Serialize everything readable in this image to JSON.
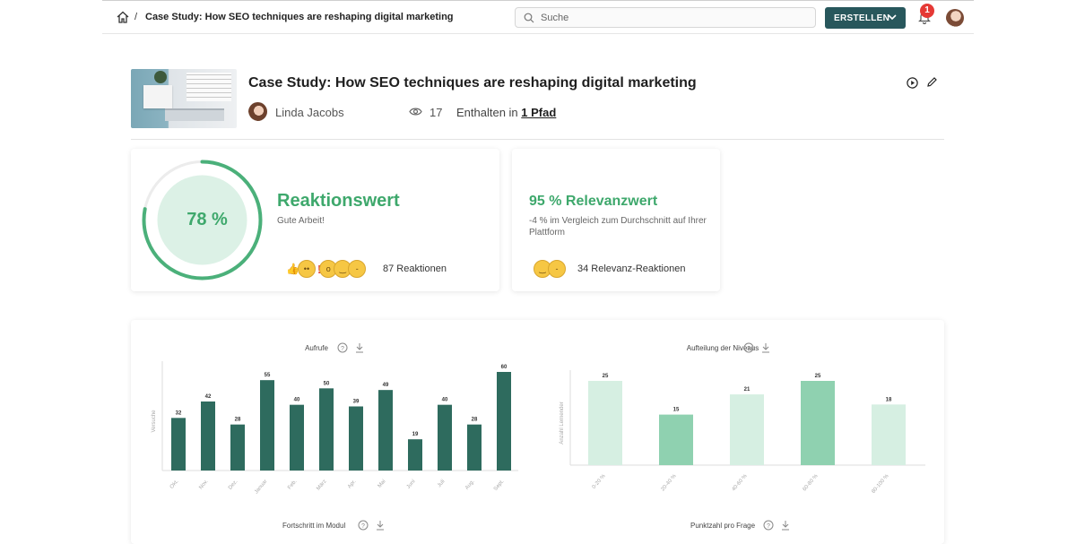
{
  "header": {
    "breadcrumb_separator": "/",
    "breadcrumb_title": "Case Study: How SEO techniques are reshaping digital marketing",
    "search_placeholder": "Suche",
    "create_label": "ERSTELLEN",
    "notification_count": "1"
  },
  "post": {
    "title": "Case Study: How SEO techniques are reshaping digital marketing",
    "author": "Linda Jacobs",
    "views": "17",
    "contained_prefix": "Enthalten in",
    "contained_link": "1 Pfad"
  },
  "reaction_card": {
    "percent_label": "78 %",
    "percent_value": 0.78,
    "title": "Reaktionswert",
    "subtitle": "Gute Arbeit!",
    "reactions": "87 Reaktionen"
  },
  "relevance_card": {
    "title": "95 % Relevanzwert",
    "subtitle": "-4 % im Vergleich zum Durchschnitt auf Ihrer Plattform",
    "reactions": "34 Relevanz-Reaktionen"
  },
  "colors": {
    "accent": "#3ea86c",
    "dark_teal": "#28575c",
    "bar_dark": "#2e6b5e",
    "bar_light": "#d6efe2",
    "bar_mid": "#8fd1b0"
  },
  "bottom_titles": {
    "left": "Fortschritt im Modul",
    "right": "Punktzahl pro Frage"
  },
  "chart_data": [
    {
      "type": "bar",
      "title": "Aufrufe",
      "xlabel": "",
      "ylabel": "Versuche",
      "categories": [
        "Okt.",
        "Nov.",
        "Dez.",
        "Januar",
        "Feb.",
        "März",
        "Apr.",
        "Mai",
        "Juni",
        "Juli",
        "Aug.",
        "Sept."
      ],
      "values": [
        32,
        42,
        28,
        55,
        40,
        50,
        39,
        49,
        19,
        40,
        28,
        60
      ],
      "ylim": [
        0,
        60
      ],
      "grid": false
    },
    {
      "type": "bar",
      "title": "Aufteilung der Niveaus",
      "xlabel": "",
      "ylabel": "Anzahl Lernender",
      "categories": [
        "0-20 %",
        "20-40 %",
        "40-60 %",
        "60-80 %",
        "80-100 %"
      ],
      "values": [
        25,
        15,
        21,
        25,
        18
      ],
      "highlighted": [
        false,
        true,
        false,
        true,
        false
      ],
      "ylim": [
        0,
        25
      ],
      "grid": false
    }
  ]
}
